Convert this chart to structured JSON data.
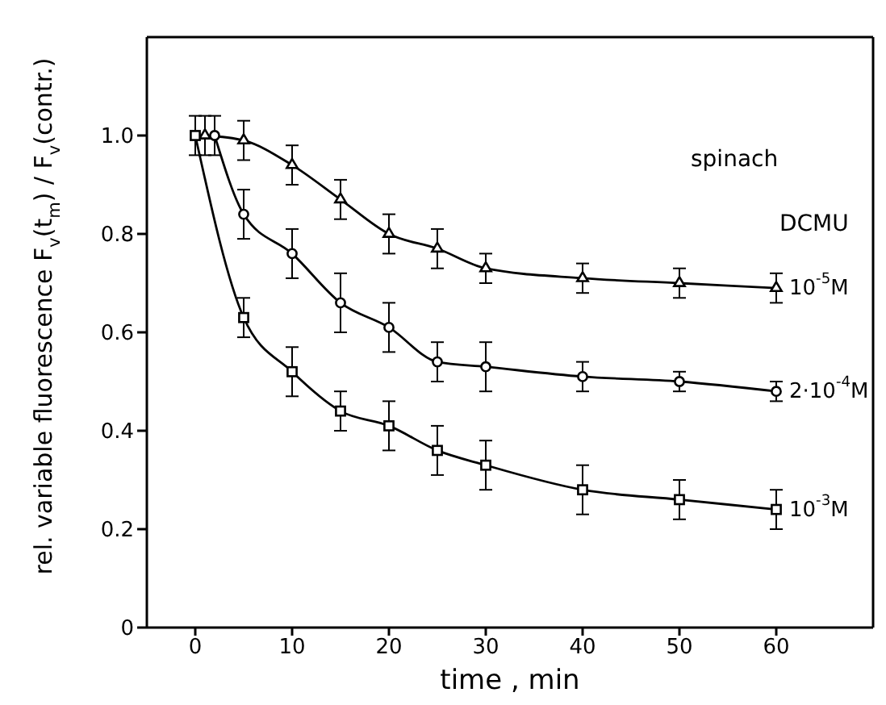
{
  "chart_data": {
    "type": "line",
    "xlabel": "time , min",
    "ylabel": "rel. variable fluorescence F$_{v}$(t$_{m}$) / F$_{v}$(contr.)",
    "xlim": [
      -5,
      70
    ],
    "xticks": [
      0,
      10,
      20,
      30,
      40,
      50,
      60
    ],
    "ylim": [
      0,
      1.2
    ],
    "yticks": [
      0,
      {
        "value": 0.2,
        "label": "0.2"
      },
      {
        "value": 0.4,
        "label": "0.4"
      },
      {
        "value": 0.6,
        "label": "0.6"
      },
      {
        "value": 0.8,
        "label": "0.8"
      },
      {
        "value": 1.0,
        "label": "1.0"
      }
    ],
    "grid": false,
    "legend": false,
    "line_style": "solid",
    "annotations": [
      "spinach",
      "DCMU"
    ],
    "series": [
      {
        "name": "10$^{-5}$M",
        "color": "#000000",
        "marker": "triangle",
        "x": [
          1,
          5,
          10,
          15,
          20,
          25,
          30,
          40,
          50,
          60
        ],
        "values": [
          1.0,
          0.99,
          0.94,
          0.87,
          0.8,
          0.77,
          0.73,
          0.71,
          0.7,
          0.69
        ],
        "errors": [
          0.04,
          0.04,
          0.04,
          0.04,
          0.04,
          0.04,
          0.03,
          0.03,
          0.03,
          0.03
        ]
      },
      {
        "name": "2·10$^{-4}$M",
        "color": "#000000",
        "marker": "circle",
        "x": [
          2,
          5,
          10,
          15,
          20,
          25,
          30,
          40,
          50,
          60
        ],
        "values": [
          1.0,
          0.84,
          0.76,
          0.66,
          0.61,
          0.54,
          0.53,
          0.51,
          0.5,
          0.48
        ],
        "errors": [
          0.04,
          0.05,
          0.05,
          0.06,
          0.05,
          0.04,
          0.05,
          0.03,
          0.02,
          0.02
        ]
      },
      {
        "name": "10$^{-3}$M",
        "color": "#000000",
        "marker": "square",
        "x": [
          0,
          5,
          10,
          15,
          20,
          25,
          30,
          40,
          50,
          60
        ],
        "values": [
          1.0,
          0.63,
          0.52,
          0.44,
          0.41,
          0.36,
          0.33,
          0.28,
          0.26,
          0.24
        ],
        "errors": [
          0.04,
          0.04,
          0.05,
          0.04,
          0.05,
          0.05,
          0.05,
          0.05,
          0.04,
          0.04
        ]
      }
    ]
  }
}
